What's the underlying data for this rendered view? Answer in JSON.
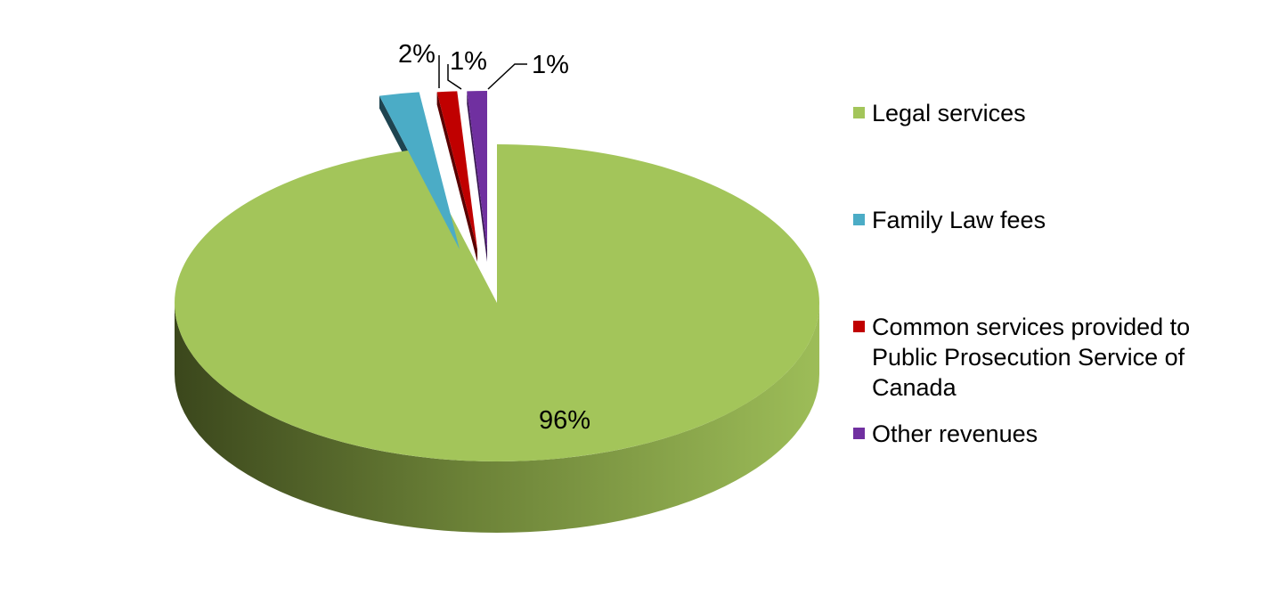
{
  "chart_data": {
    "type": "pie",
    "style": "3d-exploded",
    "title": "",
    "legend_position": "right",
    "slices": [
      {
        "name": "Legal services",
        "value": 96,
        "label": "96%",
        "color": "#a3c55a",
        "side_color_light": "#9fbf5a",
        "side_color_dark": "#3c4a1e"
      },
      {
        "name": "Family Law fees",
        "value": 2,
        "label": "2%",
        "color": "#4bacc6",
        "side_color_light": "#2f6b7c",
        "side_color_dark": "#1e4450"
      },
      {
        "name": "Common services provided to Public Prosecution Service of Canada",
        "value": 1,
        "label": "1%",
        "color": "#c00000",
        "side_color_light": "#8a0000",
        "side_color_dark": "#5a0000"
      },
      {
        "name": "Other revenues",
        "value": 1,
        "label": "1%",
        "color": "#7030a0",
        "side_color_light": "#51237a",
        "side_color_dark": "#361650"
      }
    ]
  }
}
